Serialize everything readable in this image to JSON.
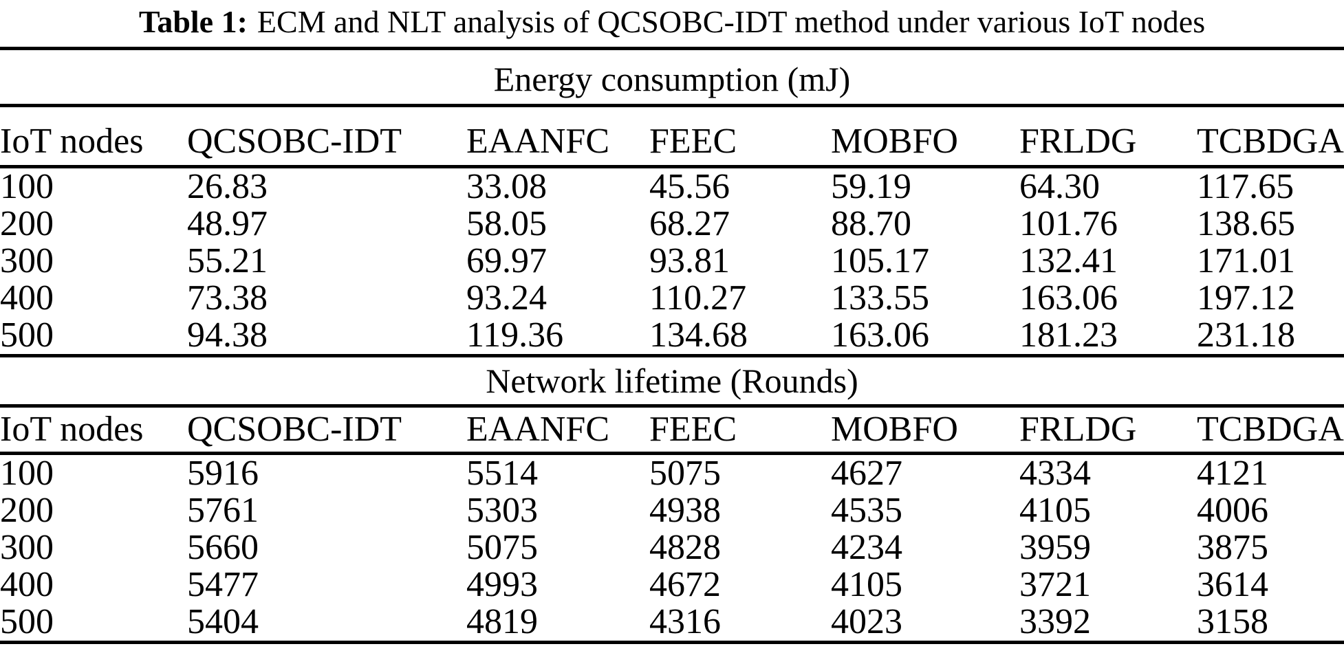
{
  "caption": {
    "label": "Table 1:",
    "text": "ECM and NLT analysis of QCSOBC-IDT method under various IoT nodes"
  },
  "sections": [
    {
      "title": "Energy consumption (mJ)",
      "columns": [
        "IoT nodes",
        "QCSOBC-IDT",
        "EAANFC",
        "FEEC",
        "MOBFO",
        "FRLDG",
        "TCBDGA"
      ],
      "rows": [
        [
          "100",
          "26.83",
          "33.08",
          "45.56",
          "59.19",
          "64.30",
          "117.65"
        ],
        [
          "200",
          "48.97",
          "58.05",
          "68.27",
          "88.70",
          "101.76",
          "138.65"
        ],
        [
          "300",
          "55.21",
          "69.97",
          "93.81",
          "105.17",
          "132.41",
          "171.01"
        ],
        [
          "400",
          "73.38",
          "93.24",
          "110.27",
          "133.55",
          "163.06",
          "197.12"
        ],
        [
          "500",
          "94.38",
          "119.36",
          "134.68",
          "163.06",
          "181.23",
          "231.18"
        ]
      ]
    },
    {
      "title": "Network lifetime (Rounds)",
      "columns": [
        "IoT nodes",
        "QCSOBC-IDT",
        "EAANFC",
        "FEEC",
        "MOBFO",
        "FRLDG",
        "TCBDGA"
      ],
      "rows": [
        [
          "100",
          "5916",
          "5514",
          "5075",
          "4627",
          "4334",
          "4121"
        ],
        [
          "200",
          "5761",
          "5303",
          "4938",
          "4535",
          "4105",
          "4006"
        ],
        [
          "300",
          "5660",
          "5075",
          "4828",
          "4234",
          "3959",
          "3875"
        ],
        [
          "400",
          "5477",
          "4993",
          "4672",
          "4105",
          "3721",
          "3614"
        ],
        [
          "500",
          "5404",
          "4819",
          "4316",
          "4023",
          "3392",
          "3158"
        ]
      ]
    }
  ]
}
